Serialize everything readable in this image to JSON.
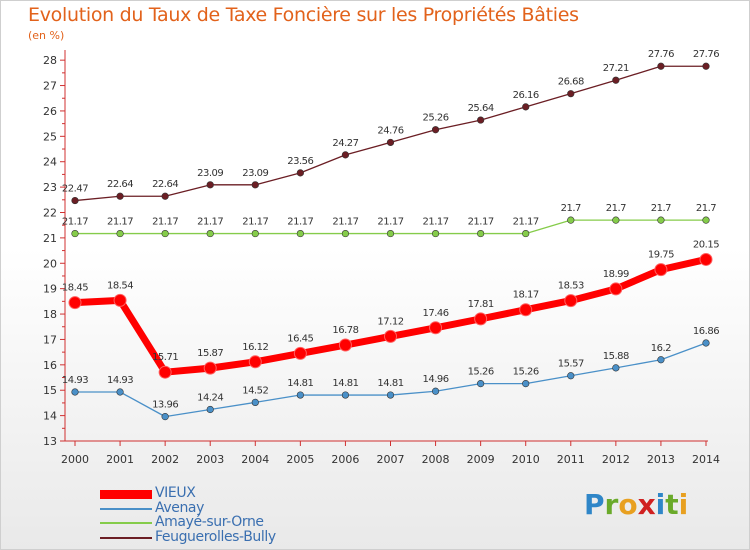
{
  "chart_data": {
    "type": "line",
    "title": "Evolution du Taux de Taxe Foncière sur les Propriétés Bâties",
    "unit_label": "(en %)",
    "x": [
      "2000",
      "2001",
      "2002",
      "2003",
      "2004",
      "2005",
      "2006",
      "2007",
      "2008",
      "2009",
      "2010",
      "2011",
      "2012",
      "2013",
      "2014"
    ],
    "y_ticks": [
      13,
      14,
      15,
      16,
      17,
      18,
      19,
      20,
      21,
      22,
      23,
      24,
      25,
      26,
      27,
      28
    ],
    "ylim": [
      13,
      28.4
    ],
    "grid": false,
    "legend_position": "bottom-left",
    "series": [
      {
        "name": "VIEUX",
        "color": "#ff0000",
        "values": [
          18.45,
          18.54,
          15.71,
          15.87,
          16.12,
          16.45,
          16.78,
          17.12,
          17.46,
          17.81,
          18.17,
          18.53,
          18.99,
          19.75,
          20.15
        ],
        "labels": [
          "18.45",
          "18.54",
          "15.71",
          "15.87",
          "16.12",
          "16.45",
          "16.78",
          "17.12",
          "17.46",
          "17.81",
          "18.17",
          "18.53",
          "18.99",
          "19.75",
          "20.15"
        ]
      },
      {
        "name": "Avenay",
        "color": "#4a90c8",
        "values": [
          14.93,
          14.93,
          13.96,
          14.24,
          14.52,
          14.81,
          14.81,
          14.81,
          14.96,
          15.26,
          15.26,
          15.57,
          15.88,
          16.2,
          16.86
        ],
        "labels": [
          "14.93",
          "14.93",
          "13.96",
          "14.24",
          "14.52",
          "14.81",
          "14.81",
          "14.81",
          "14.96",
          "15.26",
          "15.26",
          "15.57",
          "15.88",
          "16.2",
          "16.86"
        ]
      },
      {
        "name": "Amayé-sur-Orne",
        "color": "#85cc4a",
        "values": [
          21.17,
          21.17,
          21.17,
          21.17,
          21.17,
          21.17,
          21.17,
          21.17,
          21.17,
          21.17,
          21.17,
          21.7,
          21.7,
          21.7,
          21.7
        ],
        "labels": [
          "21.17",
          "21.17",
          "21.17",
          "21.17",
          "21.17",
          "21.17",
          "21.17",
          "21.17",
          "21.17",
          "21.17",
          "21.17",
          "21.7",
          "21.7",
          "21.7",
          "21.7"
        ]
      },
      {
        "name": "Feuguerolles-Bully",
        "color": "#6b1e24",
        "values": [
          22.47,
          22.64,
          22.64,
          23.09,
          23.09,
          23.56,
          24.27,
          24.76,
          25.26,
          25.64,
          26.16,
          26.68,
          27.21,
          27.76,
          27.76
        ],
        "labels": [
          "22.47",
          "22.64",
          "22.64",
          "23.09",
          "23.09",
          "23.56",
          "24.27",
          "24.76",
          "25.26",
          "25.64",
          "26.16",
          "26.68",
          "27.21",
          "27.76",
          "27.76"
        ]
      }
    ]
  },
  "logo": {
    "letters": [
      "P",
      "r",
      "o",
      "x",
      "i",
      "t",
      "i"
    ],
    "colors": [
      "#2f86c8",
      "#6aaa2a",
      "#e8a020",
      "#d02020",
      "#2f86c8",
      "#6aaa2a",
      "#e8a020"
    ]
  }
}
